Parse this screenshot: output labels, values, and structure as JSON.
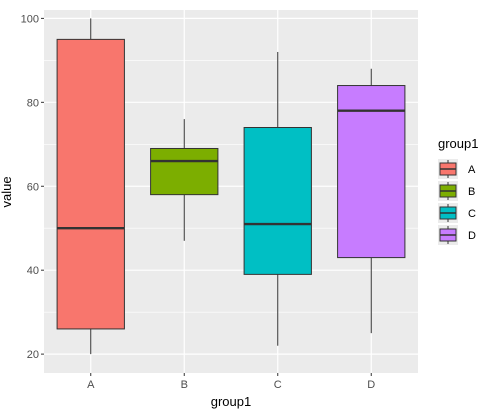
{
  "chart_data": {
    "type": "boxplot",
    "title": "",
    "xlabel": "group1",
    "ylabel": "value",
    "ylim": [
      15.5,
      102
    ],
    "y_ticks": [
      20,
      40,
      60,
      80,
      100
    ],
    "grid": true,
    "legend": {
      "title": "group1",
      "placement": "right"
    },
    "categories": [
      "A",
      "B",
      "C",
      "D"
    ],
    "boxes": [
      {
        "name": "A",
        "min": 20,
        "q1": 26,
        "median": 50,
        "q3": 95,
        "max": 100,
        "color": "#F8766D"
      },
      {
        "name": "B",
        "min": 47,
        "q1": 58,
        "median": 66,
        "q3": 69,
        "max": 76,
        "color": "#7CAE00"
      },
      {
        "name": "C",
        "min": 22,
        "q1": 39,
        "median": 51,
        "q3": 74,
        "max": 92,
        "color": "#00BFC4"
      },
      {
        "name": "D",
        "min": 25,
        "q1": 43,
        "median": 78,
        "q3": 84,
        "max": 88,
        "color": "#C77CFF"
      }
    ]
  },
  "colors": {
    "panel_background": "#EBEBEB",
    "grid_major": "#FFFFFF",
    "box_outline": "#333333"
  }
}
